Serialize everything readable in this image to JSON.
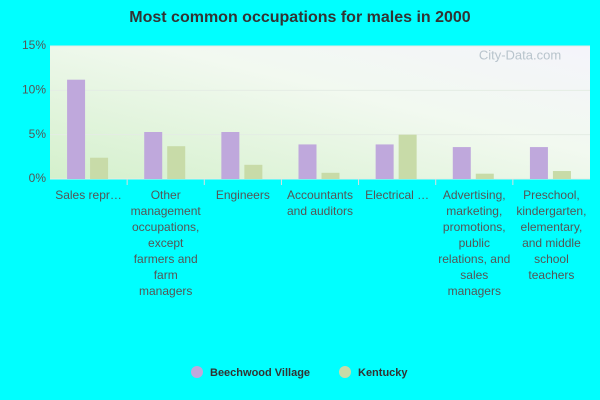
{
  "chart_data": {
    "type": "bar",
    "title": "Most common occupations for males in 2000",
    "watermark": "City-Data.com",
    "categories": [
      "Sales repr…",
      "Other management occupations, except farmers and farm managers",
      "Engineers",
      "Accountants and auditors",
      "Electrical …",
      "Advertising, marketing, promotions, public relations, and sales managers",
      "Preschool, kindergarten, elementary, and middle school teachers"
    ],
    "series": [
      {
        "name": "Beechwood Village",
        "color": "#bfa8dc",
        "values": [
          11.2,
          5.3,
          5.3,
          3.9,
          3.9,
          3.6,
          3.6
        ]
      },
      {
        "name": "Kentucky",
        "color": "#c8dba8",
        "values": [
          2.4,
          3.7,
          1.6,
          0.7,
          5.0,
          0.6,
          0.9
        ]
      }
    ],
    "ylim": [
      0,
      15
    ],
    "yticks": [
      {
        "value": 0,
        "label": "0%"
      },
      {
        "value": 5,
        "label": "5%"
      },
      {
        "value": 10,
        "label": "10%"
      },
      {
        "value": 15,
        "label": "15%"
      }
    ],
    "grid": true
  }
}
